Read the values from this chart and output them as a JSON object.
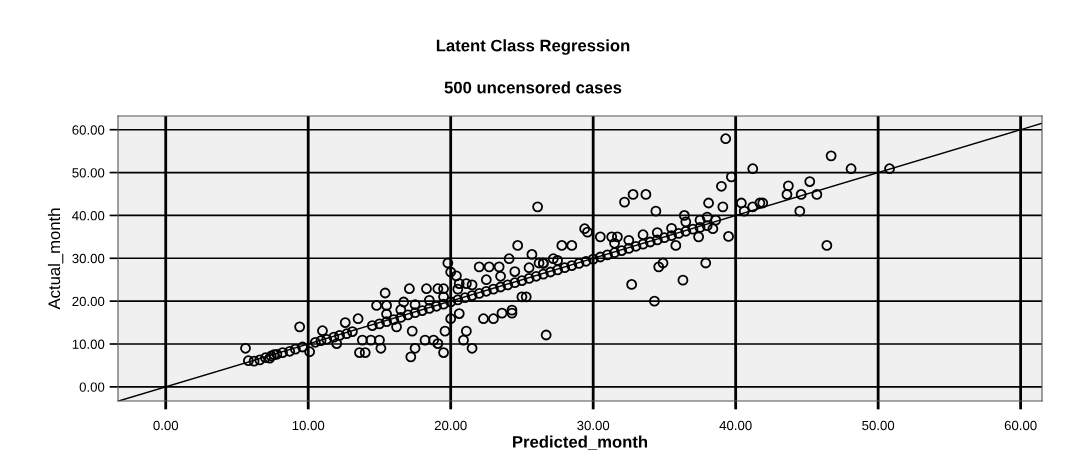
{
  "chart_data": {
    "type": "scatter",
    "title": "Latent Class Regression",
    "subtitle": "500 uncensored cases",
    "xlabel": "Predicted_month",
    "ylabel": "Actual_month",
    "xlim": [
      -3.35,
      61.5
    ],
    "ylim": [
      -3.3,
      63.2
    ],
    "xticks": [
      {
        "value": 0,
        "label": "0.00"
      },
      {
        "value": 10,
        "label": "10.00"
      },
      {
        "value": 20,
        "label": "20.00"
      },
      {
        "value": 30,
        "label": "30.00"
      },
      {
        "value": 40,
        "label": "40.00"
      },
      {
        "value": 50,
        "label": "50.00"
      },
      {
        "value": 60,
        "label": "60.00"
      }
    ],
    "yticks": [
      {
        "value": 0,
        "label": "0.00"
      },
      {
        "value": 10,
        "label": "10.00"
      },
      {
        "value": 20,
        "label": "20.00"
      },
      {
        "value": 30,
        "label": "30.00"
      },
      {
        "value": 40,
        "label": "40.00"
      },
      {
        "value": 50,
        "label": "50.00"
      },
      {
        "value": 60,
        "label": "60.00"
      }
    ],
    "grid": true,
    "marker": "circle",
    "series": [
      {
        "color": "#000000",
        "x": [
          5.6,
          5.8,
          6.6,
          7.3,
          7.6,
          9.4,
          10.1,
          11.0,
          12.6,
          13.5,
          12.0,
          13.8,
          14.4,
          15.0,
          13.6,
          14.0,
          15.1,
          15.4,
          17.1,
          18.3,
          17.2,
          17.5,
          17.3,
          18.2,
          14.8,
          15.5,
          16.7,
          16.2,
          19.1,
          19.5,
          19.8,
          20.0,
          20.4,
          20.6,
          21.1,
          22.0,
          22.7,
          23.4,
          24.1,
          24.7,
          25.7,
          26.1,
          26.2,
          26.5,
          27.2,
          27.8,
          28.5,
          25.0,
          25.3,
          22.3,
          23.0,
          23.6,
          24.3,
          24.3,
          26.7,
          20.0,
          20.6,
          21.1,
          20.9,
          21.5,
          19.6,
          19.5,
          18.8,
          19.1,
          29.4,
          29.6,
          30.5,
          31.3,
          31.7,
          32.2,
          32.8,
          33.7,
          34.4,
          32.7,
          34.3,
          34.9,
          34.6,
          36.3,
          37.9,
          35.8,
          37.4,
          36.4,
          38.1,
          39.0,
          39.3,
          39.1,
          39.5,
          39.7,
          41.2,
          46.7,
          48.1,
          50.8,
          43.7,
          45.2,
          43.6,
          44.6,
          45.7,
          44.5,
          40.4,
          40.6,
          41.7,
          41.9,
          41.2,
          46.4,
          38.0,
          38.6,
          38.4,
          6.2,
          7.0,
          7.4,
          7.8,
          8.2,
          8.7,
          9.1,
          9.6,
          10.5,
          10.9,
          11.3,
          11.8,
          12.2,
          12.7,
          13.1,
          14.5,
          15.0,
          15.5,
          16.0,
          16.5,
          17.0,
          17.5,
          18.0,
          18.5,
          19.0,
          19.5,
          20.0,
          20.5,
          21.0,
          21.5,
          22.0,
          22.5,
          23.0,
          23.5,
          24.0,
          24.5,
          25.0,
          25.5,
          26.0,
          26.5,
          27.0,
          27.5,
          28.0,
          28.5,
          29.0,
          29.5,
          30.0,
          30.5,
          31.0,
          31.5,
          32.0,
          32.5,
          33.0,
          33.5,
          34.0,
          34.5,
          35.0,
          35.5,
          36.0,
          36.5,
          37.0,
          37.5,
          38.0,
          15.5,
          16.5,
          17.5,
          18.5,
          19.5,
          20.5,
          21.5,
          22.5,
          23.5,
          24.5,
          25.5,
          26.5,
          27.5,
          31.5,
          32.5,
          33.5,
          34.5,
          35.5,
          36.5,
          37.5
        ],
        "values": [
          9.0,
          6.1,
          6.3,
          6.7,
          7.5,
          14.0,
          8.2,
          13.1,
          15.0,
          15.9,
          10.1,
          10.9,
          10.9,
          10.9,
          8.0,
          8.0,
          9.0,
          21.9,
          22.9,
          22.9,
          7.0,
          9.0,
          13.0,
          10.9,
          19.0,
          19.0,
          19.8,
          14.0,
          22.9,
          22.9,
          28.9,
          26.8,
          25.9,
          24.1,
          24.1,
          28.0,
          28.0,
          28.0,
          29.9,
          33.0,
          30.9,
          42.0,
          28.9,
          28.9,
          29.9,
          33.0,
          33.0,
          21.0,
          21.0,
          15.9,
          15.9,
          17.2,
          17.9,
          17.2,
          12.1,
          15.9,
          17.1,
          13.0,
          10.9,
          9.0,
          13.0,
          8.0,
          10.9,
          10.1,
          36.9,
          36.1,
          35.0,
          35.0,
          35.0,
          43.1,
          44.9,
          44.9,
          41.0,
          23.9,
          20.0,
          28.9,
          28.0,
          24.9,
          28.9,
          33.0,
          35.0,
          40.0,
          42.9,
          46.8,
          57.9,
          42.0,
          35.1,
          49.0,
          50.9,
          53.9,
          50.9,
          50.9,
          46.9,
          47.9,
          44.9,
          44.9,
          44.9,
          41.0,
          42.9,
          41.0,
          42.9,
          42.9,
          42.0,
          33.0,
          39.6,
          38.9,
          36.9,
          6.0,
          6.8,
          7.2,
          7.6,
          8.0,
          8.3,
          8.8,
          9.3,
          10.4,
          10.8,
          11.1,
          11.6,
          12.0,
          12.4,
          12.9,
          14.3,
          14.7,
          15.2,
          15.7,
          16.2,
          16.8,
          17.3,
          17.8,
          18.3,
          18.8,
          19.3,
          19.8,
          20.3,
          20.8,
          21.3,
          21.8,
          22.3,
          22.8,
          23.3,
          23.8,
          24.3,
          24.8,
          25.3,
          25.8,
          26.3,
          26.8,
          27.3,
          27.8,
          28.3,
          28.8,
          29.3,
          29.8,
          30.3,
          30.8,
          31.3,
          31.8,
          32.3,
          32.8,
          33.3,
          33.8,
          34.3,
          34.8,
          35.3,
          35.8,
          36.3,
          36.8,
          37.2,
          37.6,
          17.0,
          18.0,
          19.2,
          20.2,
          21.0,
          22.8,
          23.8,
          25.0,
          25.8,
          26.9,
          27.8,
          28.8,
          29.5,
          33.5,
          34.2,
          35.5,
          36.0,
          37.0,
          38.5,
          38.9
        ]
      },
      {
        "type": "line",
        "color": "#000000",
        "marker": "none",
        "x": [
          -3.3,
          61.5
        ],
        "values": [
          -3.3,
          61.5
        ]
      }
    ]
  }
}
